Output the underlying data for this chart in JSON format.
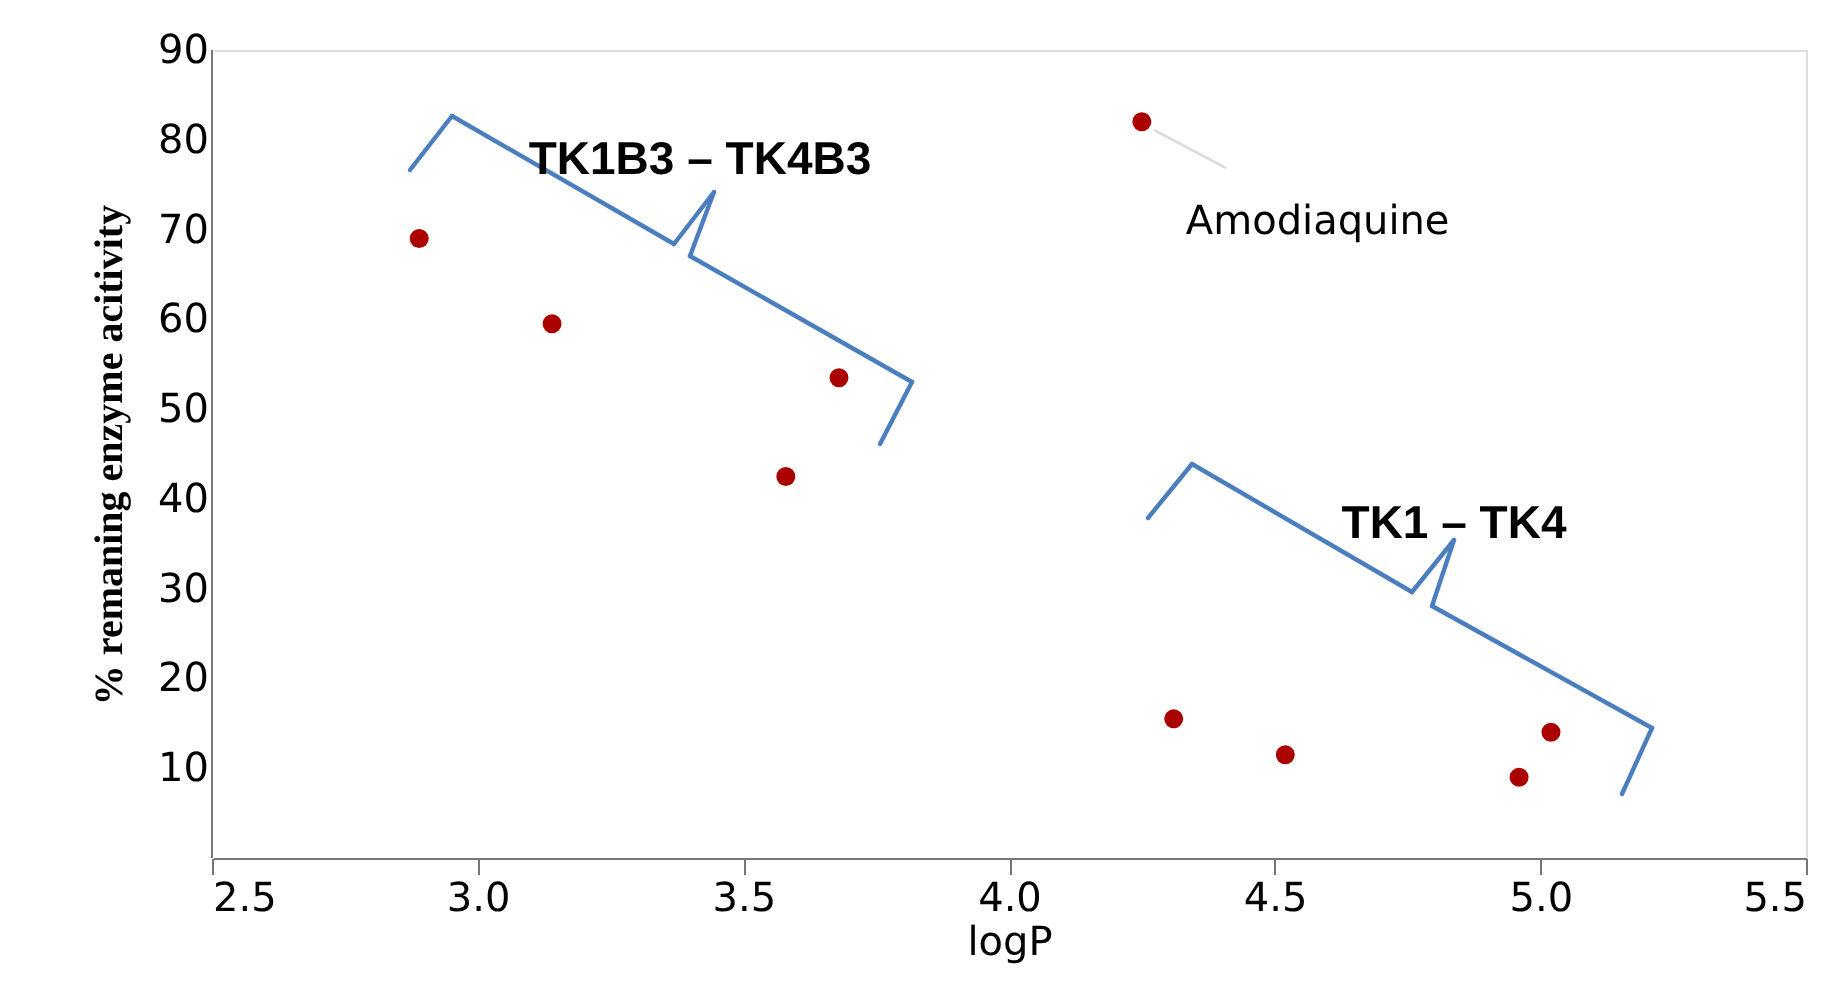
{
  "chart_data": {
    "type": "scatter",
    "xlabel": "logP",
    "ylabel": "% remaning enzyme acitivity",
    "x": [
      2.89,
      3.14,
      3.68,
      3.58,
      4.25,
      4.31,
      4.52,
      5.02,
      4.96
    ],
    "series": [
      {
        "color": "#aa0000",
        "values": [
          69,
          59.5,
          53.5,
          42.5,
          82,
          15.5,
          11.5,
          14,
          9
        ]
      }
    ],
    "marker": "circle",
    "grid": false,
    "xlim": [
      2.5,
      5.5
    ],
    "xticks": [
      {
        "value": 2.5,
        "label": "2.5"
      },
      {
        "value": 3,
        "label": "3.0"
      },
      {
        "value": 3.5,
        "label": "3.5"
      },
      {
        "value": 4,
        "label": "4.0"
      },
      {
        "value": 4.5,
        "label": "4.5"
      },
      {
        "value": 5,
        "label": "5.0"
      },
      {
        "value": 5.5,
        "label": "5.5"
      }
    ],
    "ylim": [
      0,
      90
    ],
    "yticks": [
      10,
      20,
      30,
      40,
      50,
      60,
      70,
      80,
      90
    ],
    "annotations": [
      {
        "text": "Amodiaquine",
        "x": 4.25,
        "y": 82
      },
      "TK1B3 – TK4B3",
      "TK1 – TK4"
    ]
  }
}
